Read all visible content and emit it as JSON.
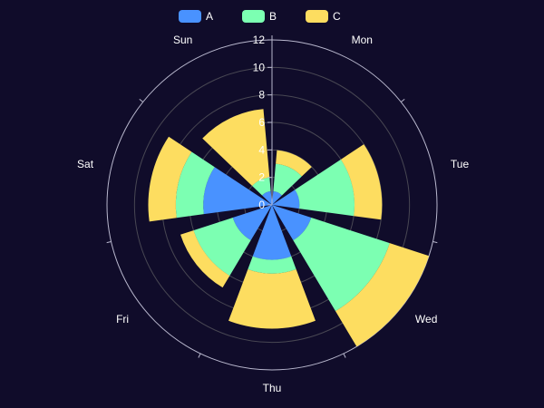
{
  "chart_data": {
    "type": "polar-stacked-bar",
    "categories": [
      "Mon",
      "Tue",
      "Wed",
      "Thu",
      "Fri",
      "Sat",
      "Sun"
    ],
    "series": [
      {
        "name": "A",
        "values": [
          1,
          2,
          3,
          4,
          3,
          5,
          1
        ],
        "color": "#4992ff"
      },
      {
        "name": "B",
        "values": [
          2,
          4,
          6,
          1,
          3,
          2,
          1
        ],
        "color": "#7cffb2"
      },
      {
        "name": "C",
        "values": [
          1,
          2,
          3,
          4,
          1,
          2,
          5
        ],
        "color": "#fddd60"
      }
    ],
    "radius_axis": {
      "min": 0,
      "max": 12,
      "ticks": [
        0,
        2,
        4,
        6,
        8,
        10,
        12
      ]
    },
    "legend": {
      "position": "top-center"
    },
    "colors": {
      "background": "#100c2a",
      "axis": "#b9b8ce",
      "split_line": "#484753",
      "text": "#ffffff"
    }
  }
}
